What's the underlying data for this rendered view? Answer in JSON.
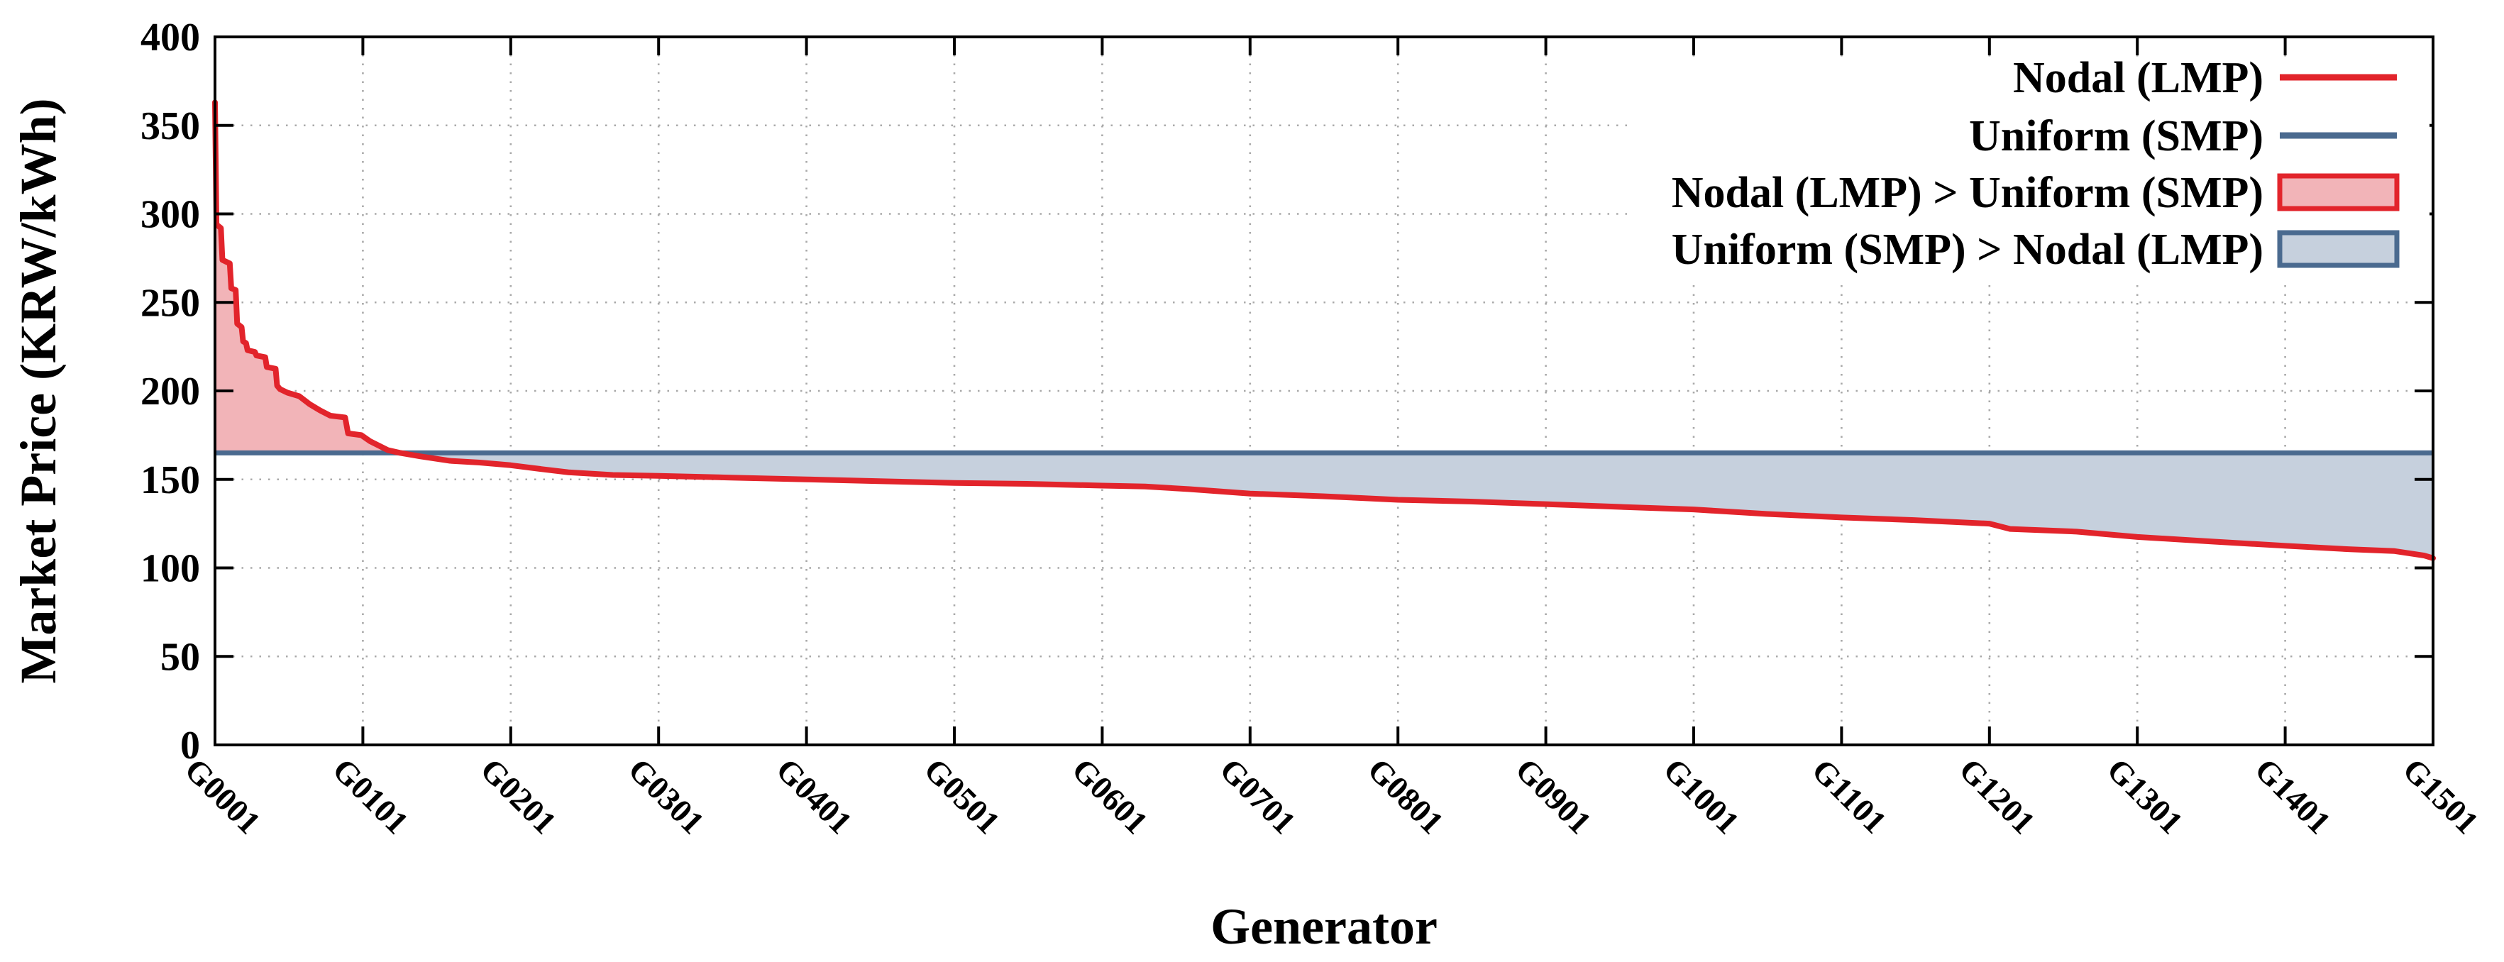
{
  "chart_data": {
    "type": "line",
    "title": "",
    "xlabel": "Generator",
    "ylabel": "Market Price (KRW/kWh)",
    "xlim": [
      1,
      1501
    ],
    "ylim": [
      0,
      400
    ],
    "grid": true,
    "legend_position": "top-right-inside",
    "y_ticks": [
      0,
      50,
      100,
      150,
      200,
      250,
      300,
      350,
      400
    ],
    "x_tick_positions": [
      1,
      101,
      201,
      301,
      401,
      501,
      601,
      701,
      801,
      901,
      1001,
      1101,
      1201,
      1301,
      1401,
      1501
    ],
    "x_tick_labels": [
      "G0001",
      "G0101",
      "G0201",
      "G0301",
      "G0401",
      "G0501",
      "G0601",
      "G0701",
      "G0801",
      "G0901",
      "G1001",
      "G1101",
      "G1201",
      "G1301",
      "G1401",
      "G1501"
    ],
    "smp_value": 165,
    "series": [
      {
        "name": "Nodal (LMP)",
        "type": "line",
        "color": "#e2242b",
        "points": [
          [
            1,
            363
          ],
          [
            2,
            294
          ],
          [
            5,
            292
          ],
          [
            6,
            274
          ],
          [
            11,
            272
          ],
          [
            12,
            258
          ],
          [
            15,
            257
          ],
          [
            16,
            238
          ],
          [
            19,
            236
          ],
          [
            20,
            228
          ],
          [
            22,
            227
          ],
          [
            23,
            223
          ],
          [
            28,
            222
          ],
          [
            29,
            220
          ],
          [
            35,
            219
          ],
          [
            36,
            213.5
          ],
          [
            42,
            212.5
          ],
          [
            43,
            203
          ],
          [
            45,
            201
          ],
          [
            50,
            199
          ],
          [
            58,
            197
          ],
          [
            65,
            192.5
          ],
          [
            71,
            189.5
          ],
          [
            72,
            189
          ],
          [
            79,
            186
          ],
          [
            89,
            185
          ],
          [
            91,
            176
          ],
          [
            100,
            175
          ],
          [
            106,
            171.5
          ],
          [
            118,
            166.5
          ],
          [
            126,
            165
          ],
          [
            140,
            163
          ],
          [
            160,
            160.5
          ],
          [
            180,
            159.5
          ],
          [
            201,
            158
          ],
          [
            220,
            156
          ],
          [
            240,
            154
          ],
          [
            270,
            152.5
          ],
          [
            301,
            152
          ],
          [
            350,
            151
          ],
          [
            401,
            150
          ],
          [
            450,
            149
          ],
          [
            501,
            148
          ],
          [
            550,
            147.5
          ],
          [
            601,
            146.5
          ],
          [
            630,
            146
          ],
          [
            660,
            144.5
          ],
          [
            701,
            142
          ],
          [
            750,
            140.5
          ],
          [
            801,
            138.5
          ],
          [
            850,
            137.5
          ],
          [
            901,
            136
          ],
          [
            950,
            134.5
          ],
          [
            1001,
            133
          ],
          [
            1050,
            130.5
          ],
          [
            1101,
            128.5
          ],
          [
            1150,
            127
          ],
          [
            1201,
            125
          ],
          [
            1215,
            122
          ],
          [
            1260,
            120.5
          ],
          [
            1301,
            117.5
          ],
          [
            1350,
            115
          ],
          [
            1401,
            112.5
          ],
          [
            1445,
            110.5
          ],
          [
            1475,
            109.5
          ],
          [
            1495,
            107
          ],
          [
            1501,
            105.5
          ]
        ]
      },
      {
        "name": "Uniform (SMP)",
        "type": "hline",
        "color": "#4a6a8f",
        "value": 165
      },
      {
        "name": "Nodal (LMP) > Uniform (SMP)",
        "type": "area",
        "fill": "#f2b4b8",
        "border": "#e2242b"
      },
      {
        "name": "Uniform (SMP) > Nodal (LMP)",
        "type": "area",
        "fill": "#c6d0dd",
        "border": "#4a6a8f"
      }
    ]
  },
  "colors": {
    "nodal_line": "#e2242b",
    "smp_line": "#4a6a8f",
    "nodal_area": "#f2b4b8",
    "smp_area": "#c6d0dd",
    "grid": "#a9a9a9",
    "axis": "#000000",
    "background": "#ffffff"
  }
}
